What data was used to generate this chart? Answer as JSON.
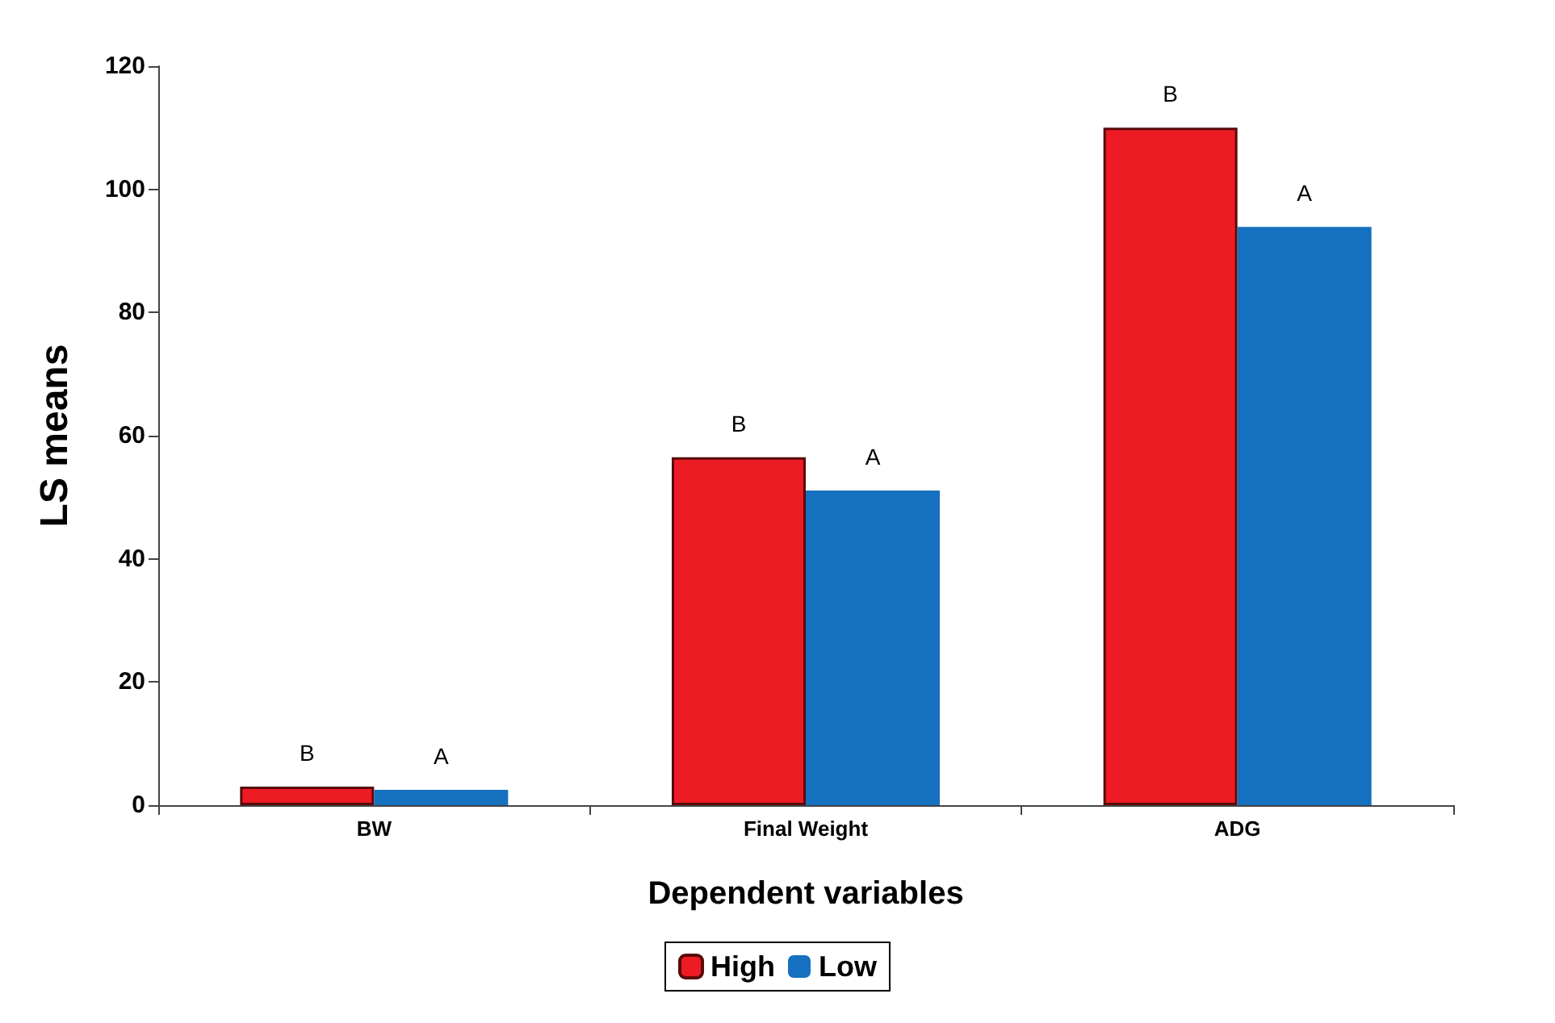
{
  "chart_data": {
    "type": "bar",
    "xlabel": "Dependent variables",
    "ylabel": "LS means",
    "categories": [
      "BW",
      "Final Weight",
      "ADG"
    ],
    "series": [
      {
        "name": "High",
        "color": "#ed1c24",
        "values": [
          3,
          56.5,
          110
        ]
      },
      {
        "name": "Low",
        "color": "#1670c0",
        "values": [
          2.5,
          51.1,
          93.9
        ]
      }
    ],
    "ylim": [
      0,
      120
    ],
    "yticks": [
      0,
      20,
      40,
      60,
      80,
      100,
      120
    ],
    "grid": false,
    "legend": "bottom",
    "annotations": [
      {
        "text": "B",
        "x": "BW",
        "y": 3
      },
      {
        "text": "A",
        "x": "BW",
        "y": 2.5
      },
      {
        "text": "B",
        "x": "Final Weight",
        "y": 56.5
      },
      {
        "text": "A",
        "x": "Final Weight",
        "y": 51.1
      },
      {
        "text": "B",
        "x": "ADG",
        "y": 110
      },
      {
        "text": "A",
        "x": "ADG",
        "y": 93.9
      }
    ]
  }
}
